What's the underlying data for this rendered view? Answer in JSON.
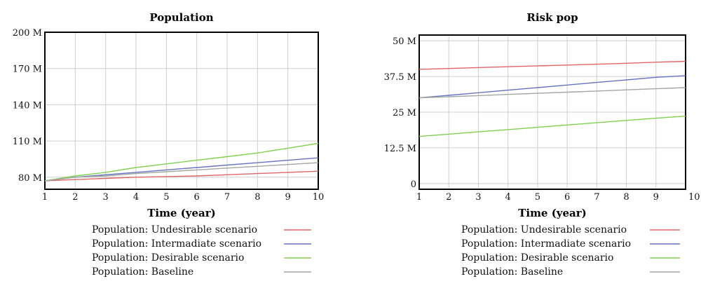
{
  "chart_data": [
    {
      "type": "line",
      "title": "Population",
      "xlabel": "Time (year)",
      "ylabel": "",
      "x_ticks": [
        1,
        2,
        3,
        4,
        5,
        6,
        7,
        8,
        9,
        10
      ],
      "xlim": [
        1,
        10
      ],
      "y_ticks": [
        {
          "value": 80,
          "label": "80 M"
        },
        {
          "value": 110,
          "label": "110 M"
        },
        {
          "value": 140,
          "label": "140 M"
        },
        {
          "value": 170,
          "label": "170 M"
        },
        {
          "value": 200,
          "label": "200 M"
        }
      ],
      "ylim": [
        70,
        200
      ],
      "grid": true,
      "legend_position": "bottom",
      "x": [
        1,
        2,
        3,
        4,
        5,
        6,
        7,
        8,
        9,
        10
      ],
      "series": [
        {
          "name": "Population: Undesirable scenario",
          "color": "#e06666",
          "values": [
            77,
            78,
            79,
            80,
            80.5,
            81,
            82,
            83,
            84,
            85
          ]
        },
        {
          "name": "Population: Intermadiate scenario",
          "color": "#6674c4",
          "values": [
            77,
            80,
            82,
            84,
            86,
            88,
            90,
            92,
            94,
            96
          ]
        },
        {
          "name": "Population: Desirable scenario",
          "color": "#7fd14f",
          "values": [
            77,
            81,
            84,
            88,
            91,
            94,
            97,
            100,
            104,
            108
          ]
        },
        {
          "name": "Population: Baseline",
          "color": "#a0a8a0",
          "values": [
            77,
            80,
            81,
            83,
            84.5,
            86,
            87.5,
            89,
            90.5,
            92
          ]
        }
      ]
    },
    {
      "type": "line",
      "title": "Risk pop",
      "xlabel": "Time (year)",
      "ylabel": "",
      "x_ticks": [
        1,
        2,
        3,
        4,
        5,
        6,
        7,
        8,
        9,
        10
      ],
      "xlim": [
        1,
        10
      ],
      "y_ticks": [
        {
          "value": 0,
          "label": "0"
        },
        {
          "value": 12.5,
          "label": "12.5 M"
        },
        {
          "value": 25,
          "label": "25 M"
        },
        {
          "value": 37.5,
          "label": "37.5 M"
        },
        {
          "value": 50,
          "label": "50 M"
        }
      ],
      "ylim": [
        -2,
        52
      ],
      "grid": true,
      "legend_position": "bottom",
      "x": [
        1,
        2,
        3,
        4,
        5,
        6,
        7,
        8,
        9,
        10
      ],
      "series": [
        {
          "name": "Population: Undesirable scenario",
          "color": "#e06666",
          "values": [
            40,
            40.3,
            40.6,
            40.9,
            41.2,
            41.5,
            41.8,
            42.1,
            42.5,
            42.8
          ]
        },
        {
          "name": "Population: Intermadiate scenario",
          "color": "#6674c4",
          "values": [
            30,
            30.9,
            31.8,
            32.7,
            33.6,
            34.5,
            35.4,
            36.3,
            37.2,
            37.8
          ]
        },
        {
          "name": "Population: Desirable scenario",
          "color": "#7fd14f",
          "values": [
            16.5,
            17.3,
            18.1,
            18.9,
            19.7,
            20.5,
            21.3,
            22.1,
            22.9,
            23.6
          ]
        },
        {
          "name": "Population: Baseline",
          "color": "#a0a8a0",
          "values": [
            30,
            30.4,
            30.8,
            31.2,
            31.6,
            32,
            32.4,
            32.8,
            33.2,
            33.6
          ]
        }
      ]
    }
  ]
}
